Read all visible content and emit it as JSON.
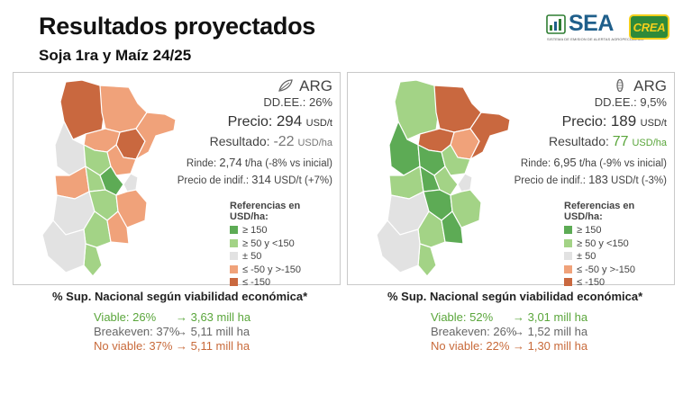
{
  "header": {
    "title": "Resultados proyectados",
    "subtitle": "Soja 1ra y Maíz 24/25",
    "sea_logo": "SEA",
    "sea_tagline": "SISTEMA DE EMISION DE ALERTAS AGROPECUARIAS",
    "crea_logo": "CREA"
  },
  "colors": {
    "dark_green": "#5dab55",
    "light_green": "#a3d386",
    "neutral": "#e2e2e2",
    "light_orange": "#f0a27a",
    "dark_orange": "#c9683f",
    "green_text": "#5aa63b",
    "orange_text": "#c86a3a"
  },
  "references": {
    "title": "Referencias en USD/ha:",
    "items": [
      "≥ 150",
      "≥ 50 y <150",
      "± 50",
      "≤ -50 y >-150",
      "≤ -150"
    ]
  },
  "panels": [
    {
      "crop_icon": "soy-leaf-icon",
      "region": "ARG",
      "dd_ee": "DD.EE.: 26%",
      "price_label": "Precio:",
      "price_value": "294",
      "price_unit": "USD/t",
      "result_label": "Resultado:",
      "result_value": "-22",
      "result_unit": "USD/ha",
      "yield_label": "Rinde:",
      "yield_value": "2,74",
      "yield_note": "t/ha (-8% vs inicial)",
      "indif_label": "Precio de indif.:",
      "indif_value": "314",
      "indif_note": "USD/t (+7%)",
      "viability_title": "% Sup. Nacional según viabilidad económica*",
      "viability": [
        {
          "label": "Viable: 26%",
          "value": "→ 3,63 mill ha"
        },
        {
          "label": "Breakeven: 37%",
          "value": "→ 5,11 mill ha"
        },
        {
          "label": "No viable: 37%",
          "value": "→ 5,11 mill ha"
        }
      ]
    },
    {
      "crop_icon": "corn-icon",
      "region": "ARG",
      "dd_ee": "DD.EE.: 9,5%",
      "price_label": "Precio:",
      "price_value": "189",
      "price_unit": "USD/t",
      "result_label": "Resultado:",
      "result_value": "77",
      "result_unit": "USD/ha",
      "yield_label": "Rinde:",
      "yield_value": "6,95",
      "yield_note": "t/ha (-9% vs inicial)",
      "indif_label": "Precio de indif.:",
      "indif_value": "183",
      "indif_note": "USD/t (-3%)",
      "viability_title": "% Sup. Nacional según viabilidad económica*",
      "viability": [
        {
          "label": "Viable: 52%",
          "value": "→ 3,01 mill ha"
        },
        {
          "label": "Breakeven: 26%",
          "value": "→ 1,52 mill ha"
        },
        {
          "label": "No viable: 22%",
          "value": "→ 1,30 mill ha"
        }
      ]
    }
  ]
}
